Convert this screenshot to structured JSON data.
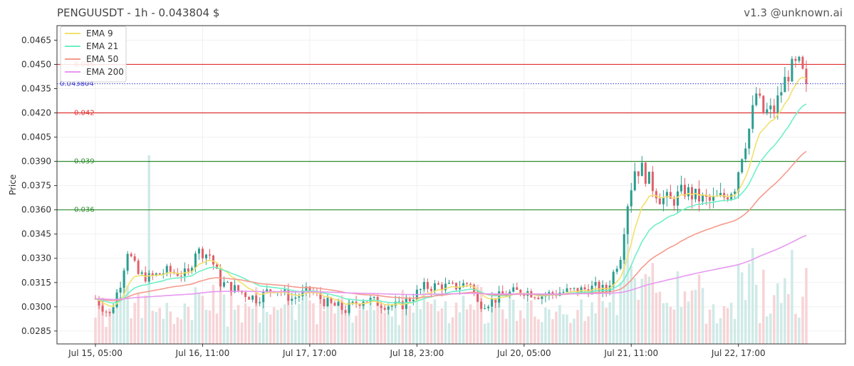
{
  "header": {
    "title": "PENGUUSDT - 1h - 0.043804 $",
    "version": "v1.3 @unknown.ai"
  },
  "chart_data": {
    "type": "candlestick",
    "symbol": "PENGUUSDT",
    "interval": "1h",
    "last_price": 0.043804,
    "ylabel": "Price",
    "ylim": [
      0.0277,
      0.0474
    ],
    "yticks": [
      "0.0285",
      "0.0300",
      "0.0315",
      "0.0330",
      "0.0345",
      "0.0360",
      "0.0375",
      "0.0390",
      "0.0405",
      "0.0420",
      "0.0435",
      "0.0450",
      "0.0465"
    ],
    "xticks": [
      "Jul 15, 05:00",
      "Jul 16, 11:00",
      "Jul 17, 17:00",
      "Jul 18, 23:00",
      "Jul 20, 05:00",
      "Jul 21, 11:00",
      "Jul 22, 17:00"
    ],
    "xtick_candle_index": [
      0,
      30,
      60,
      90,
      120,
      150,
      180
    ],
    "candle_count": 200,
    "levels": [
      {
        "label": "0.045",
        "value": 0.045,
        "color": "#e03030"
      },
      {
        "label": "0.042",
        "value": 0.042,
        "color": "#e03030"
      },
      {
        "label": "0.039",
        "value": 0.039,
        "color": "#2e8b2e"
      },
      {
        "label": "0.036",
        "value": 0.036,
        "color": "#2e8b2e"
      }
    ],
    "current_price_line": {
      "label": "0.043804",
      "value": 0.043804,
      "color": "#3333cc"
    },
    "price_path": [
      [
        0,
        0.0305
      ],
      [
        4,
        0.0295
      ],
      [
        7,
        0.0315
      ],
      [
        9,
        0.0335
      ],
      [
        12,
        0.032
      ],
      [
        15,
        0.0318
      ],
      [
        20,
        0.0322
      ],
      [
        26,
        0.032
      ],
      [
        28,
        0.0335
      ],
      [
        32,
        0.0332
      ],
      [
        35,
        0.0315
      ],
      [
        40,
        0.031
      ],
      [
        45,
        0.0305
      ],
      [
        50,
        0.0312
      ],
      [
        55,
        0.0305
      ],
      [
        60,
        0.031
      ],
      [
        65,
        0.0302
      ],
      [
        70,
        0.0298
      ],
      [
        75,
        0.0305
      ],
      [
        80,
        0.0302
      ],
      [
        85,
        0.03
      ],
      [
        88,
        0.0305
      ],
      [
        92,
        0.0312
      ],
      [
        96,
        0.0313
      ],
      [
        100,
        0.0312
      ],
      [
        105,
        0.0315
      ],
      [
        107,
        0.0302
      ],
      [
        110,
        0.0303
      ],
      [
        115,
        0.0308
      ],
      [
        120,
        0.031
      ],
      [
        125,
        0.0307
      ],
      [
        130,
        0.0309
      ],
      [
        135,
        0.031
      ],
      [
        140,
        0.0312
      ],
      [
        143,
        0.031
      ],
      [
        147,
        0.0332
      ],
      [
        149,
        0.0365
      ],
      [
        151,
        0.0385
      ],
      [
        153,
        0.0385
      ],
      [
        155,
        0.0378
      ],
      [
        158,
        0.0368
      ],
      [
        161,
        0.0365
      ],
      [
        165,
        0.0372
      ],
      [
        168,
        0.0368
      ],
      [
        172,
        0.0365
      ],
      [
        176,
        0.0368
      ],
      [
        179,
        0.0375
      ],
      [
        181,
        0.0395
      ],
      [
        183,
        0.041
      ],
      [
        185,
        0.0432
      ],
      [
        187,
        0.042
      ],
      [
        190,
        0.0422
      ],
      [
        193,
        0.044
      ],
      [
        195,
        0.0448
      ],
      [
        197,
        0.045
      ],
      [
        199,
        0.0438
      ]
    ],
    "series": [
      {
        "name": "EMA 9",
        "color": "#f2e06c",
        "period": 9
      },
      {
        "name": "EMA 21",
        "color": "#6ef0c6",
        "period": 21
      },
      {
        "name": "EMA 50",
        "color": "#f59a8c",
        "period": 50
      },
      {
        "name": "EMA 200",
        "color": "#e699f0",
        "period": 200
      }
    ],
    "colors": {
      "up": "#2a9d8f",
      "down": "#e0606a",
      "vol_up": "#cfeae7",
      "vol_down": "#f7d4d7",
      "grid": "#f0f0f0",
      "axis": "#333333"
    },
    "legend_position": "top-left",
    "grid": true
  }
}
